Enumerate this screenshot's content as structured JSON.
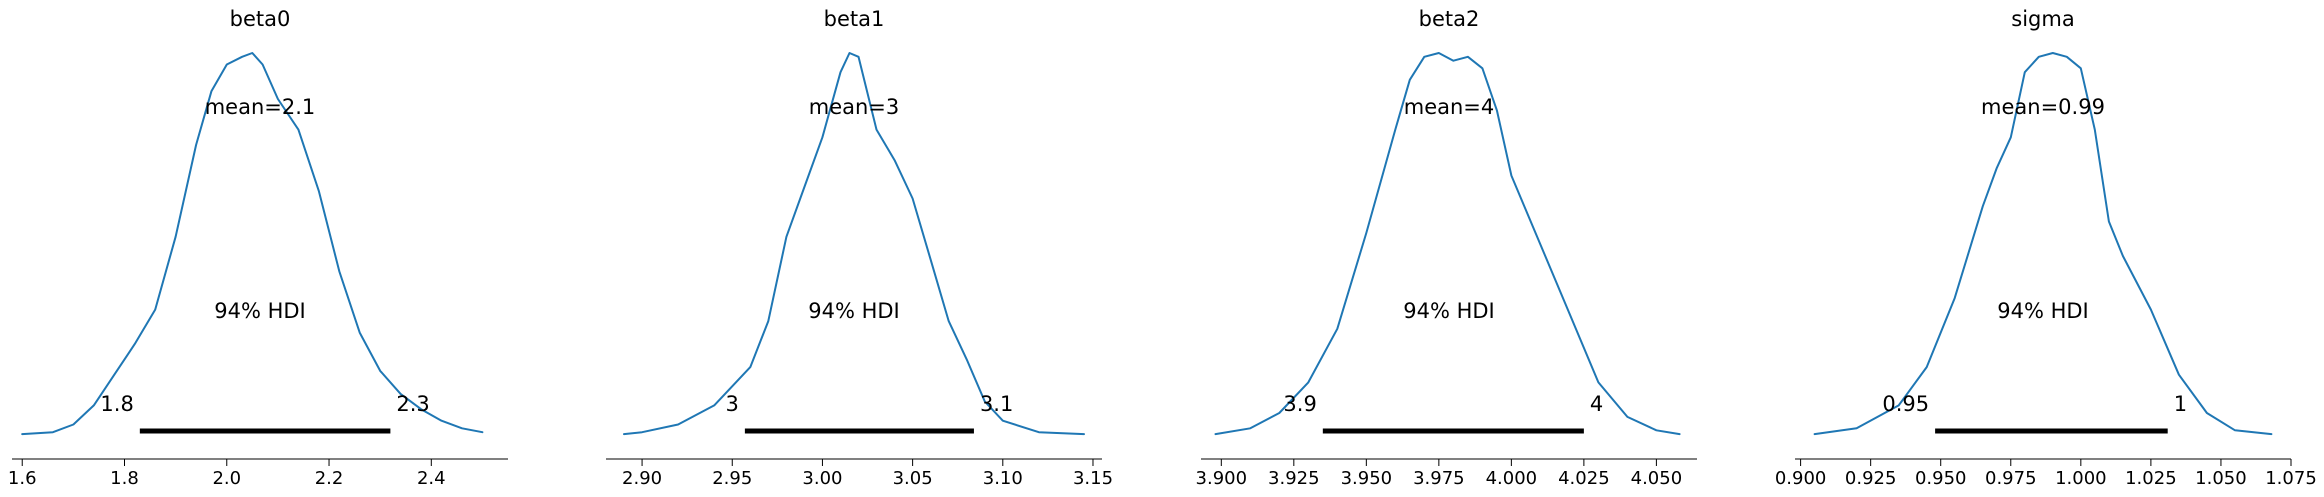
{
  "figure": {
    "line_color": "#1f77b4",
    "hdi_bar_color": "#000000",
    "axis_color": "#000000"
  },
  "chart_data": [
    {
      "type": "line",
      "title": "beta0",
      "xlim": [
        1.58,
        2.55
      ],
      "xticks": [
        1.6,
        1.8,
        2.0,
        2.2,
        2.4
      ],
      "xtick_labels": [
        "1.6",
        "1.8",
        "2.0",
        "2.2",
        "2.4"
      ],
      "mean_label": "mean=2.1",
      "hdi_label": "94% HDI",
      "hdi": [
        1.83,
        2.32
      ],
      "hdi_low_label": "1.8",
      "hdi_high_label": "2.3",
      "density_x": [
        1.6,
        1.66,
        1.7,
        1.74,
        1.78,
        1.82,
        1.86,
        1.9,
        1.94,
        1.97,
        2.0,
        2.03,
        2.05,
        2.07,
        2.1,
        2.14,
        2.18,
        2.22,
        2.26,
        2.3,
        2.34,
        2.38,
        2.42,
        2.46,
        2.5
      ],
      "density_y": [
        0.005,
        0.01,
        0.03,
        0.08,
        0.16,
        0.24,
        0.33,
        0.52,
        0.76,
        0.9,
        0.97,
        0.99,
        1.0,
        0.97,
        0.88,
        0.8,
        0.64,
        0.43,
        0.27,
        0.17,
        0.11,
        0.07,
        0.04,
        0.02,
        0.01
      ]
    },
    {
      "type": "line",
      "title": "beta1",
      "xlim": [
        2.88,
        3.155
      ],
      "xticks": [
        2.9,
        2.95,
        3.0,
        3.05,
        3.1,
        3.15
      ],
      "xtick_labels": [
        "2.90",
        "2.95",
        "3.00",
        "3.05",
        "3.10",
        "3.15"
      ],
      "mean_label": "mean=3",
      "hdi_label": "94% HDI",
      "hdi": [
        2.957,
        3.084
      ],
      "hdi_low_label": "3",
      "hdi_high_label": "3.1",
      "density_x": [
        2.89,
        2.9,
        2.92,
        2.94,
        2.96,
        2.97,
        2.98,
        2.99,
        3.0,
        3.01,
        3.015,
        3.02,
        3.03,
        3.04,
        3.05,
        3.06,
        3.07,
        3.08,
        3.09,
        3.1,
        3.12,
        3.145
      ],
      "density_y": [
        0.005,
        0.01,
        0.03,
        0.08,
        0.18,
        0.3,
        0.52,
        0.65,
        0.78,
        0.95,
        1.0,
        0.99,
        0.8,
        0.72,
        0.62,
        0.46,
        0.3,
        0.2,
        0.09,
        0.04,
        0.01,
        0.005
      ]
    },
    {
      "type": "line",
      "title": "beta2",
      "xlim": [
        3.893,
        4.064
      ],
      "xticks": [
        3.9,
        3.925,
        3.95,
        3.975,
        4.0,
        4.025,
        4.05
      ],
      "xtick_labels": [
        "3.900",
        "3.925",
        "3.950",
        "3.975",
        "4.000",
        "4.025",
        "4.050"
      ],
      "mean_label": "mean=4",
      "hdi_label": "94% HDI",
      "hdi": [
        3.935,
        4.025
      ],
      "hdi_low_label": "3.9",
      "hdi_high_label": "4",
      "density_x": [
        3.898,
        3.91,
        3.92,
        3.93,
        3.94,
        3.95,
        3.96,
        3.965,
        3.97,
        3.975,
        3.98,
        3.985,
        3.99,
        3.995,
        4.0,
        4.01,
        4.02,
        4.03,
        4.04,
        4.05,
        4.058
      ],
      "density_y": [
        0.005,
        0.02,
        0.06,
        0.14,
        0.28,
        0.53,
        0.8,
        0.93,
        0.99,
        1.0,
        0.98,
        0.99,
        0.96,
        0.85,
        0.68,
        0.5,
        0.32,
        0.14,
        0.05,
        0.015,
        0.005
      ]
    },
    {
      "type": "line",
      "title": "sigma",
      "xlim": [
        0.898,
        1.075
      ],
      "xticks": [
        0.9,
        0.925,
        0.95,
        0.975,
        1.0,
        1.025,
        1.05,
        1.075
      ],
      "xtick_labels": [
        "0.900",
        "0.925",
        "0.950",
        "0.975",
        "1.000",
        "1.025",
        "1.050",
        "1.075"
      ],
      "mean_label": "mean=0.99",
      "hdi_label": "94% HDI",
      "hdi": [
        0.948,
        1.031
      ],
      "hdi_low_label": "0.95",
      "hdi_high_label": "1",
      "density_x": [
        0.905,
        0.92,
        0.935,
        0.945,
        0.955,
        0.965,
        0.97,
        0.975,
        0.98,
        0.985,
        0.99,
        0.995,
        1.0,
        1.005,
        1.01,
        1.015,
        1.025,
        1.035,
        1.045,
        1.055,
        1.068
      ],
      "density_y": [
        0.005,
        0.02,
        0.08,
        0.18,
        0.36,
        0.6,
        0.7,
        0.78,
        0.95,
        0.99,
        1.0,
        0.99,
        0.96,
        0.8,
        0.56,
        0.47,
        0.33,
        0.16,
        0.06,
        0.015,
        0.005
      ]
    }
  ]
}
